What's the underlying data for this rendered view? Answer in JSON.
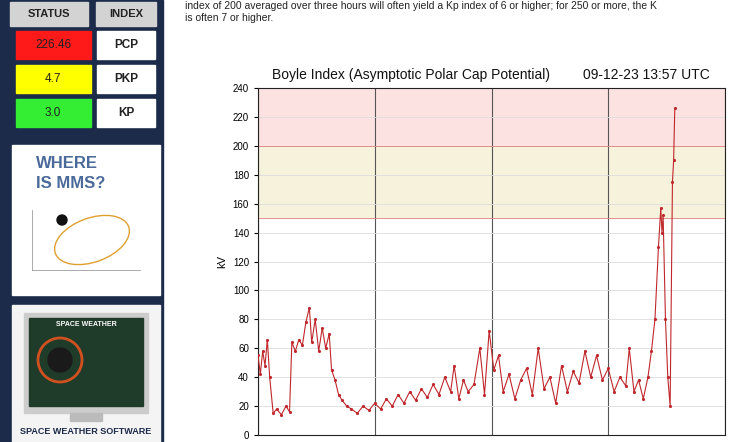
{
  "page_text": [
    "index of 200 averaged over three hours will often yield a Kp index of 6 or higher; for 250 or more, the K",
    "is often 7 or higher."
  ],
  "sidebar": {
    "header": [
      "STATUS",
      "INDEX"
    ],
    "rows": [
      {
        "value": 226.46,
        "label": "PCP",
        "color": "#ff1a1a"
      },
      {
        "value": 4.7,
        "label": "PKP",
        "color": "#ffff00"
      },
      {
        "value": 3.0,
        "label": "KP",
        "color": "#33ee33"
      }
    ],
    "mms_panel": [
      "WHERE",
      "IS MMS?"
    ],
    "software_panel": {
      "screen_text": "SPACE WEATHER",
      "caption": "SPACE WEATHER SOFTWARE"
    }
  },
  "chart_data": {
    "type": "line",
    "title": "Boyle Index (Asymptotic Polar Cap Potential)",
    "timestamp": "09-12-23 13:57 UTC",
    "y_label": "kV",
    "x": [
      0.0,
      0.02,
      0.04,
      0.06,
      0.08,
      0.1,
      0.13,
      0.16,
      0.2,
      0.24,
      0.27,
      0.29,
      0.32,
      0.35,
      0.38,
      0.41,
      0.44,
      0.46,
      0.49,
      0.52,
      0.55,
      0.58,
      0.61,
      0.63,
      0.66,
      0.69,
      0.72,
      0.76,
      0.8,
      0.85,
      0.9,
      0.95,
      1.0,
      1.05,
      1.1,
      1.15,
      1.2,
      1.25,
      1.3,
      1.35,
      1.4,
      1.45,
      1.5,
      1.55,
      1.6,
      1.65,
      1.68,
      1.72,
      1.76,
      1.8,
      1.85,
      1.9,
      1.94,
      1.98,
      2.02,
      2.06,
      2.1,
      2.15,
      2.2,
      2.25,
      2.3,
      2.35,
      2.4,
      2.45,
      2.5,
      2.55,
      2.6,
      2.65,
      2.7,
      2.75,
      2.8,
      2.85,
      2.9,
      2.95,
      3.0,
      3.05,
      3.1,
      3.15,
      3.18,
      3.22,
      3.26,
      3.3,
      3.34,
      3.37,
      3.4,
      3.43,
      3.45,
      3.46,
      3.47,
      3.49,
      3.51,
      3.53,
      3.55,
      3.56,
      3.57
    ],
    "values": [
      55,
      42,
      58,
      48,
      66,
      40,
      15,
      18,
      14,
      20,
      16,
      64,
      58,
      66,
      62,
      78,
      88,
      64,
      80,
      58,
      74,
      60,
      70,
      45,
      38,
      28,
      24,
      20,
      18,
      15,
      20,
      17,
      22,
      18,
      25,
      20,
      28,
      22,
      30,
      24,
      32,
      26,
      35,
      28,
      40,
      30,
      48,
      25,
      38,
      30,
      35,
      60,
      28,
      72,
      45,
      55,
      30,
      42,
      25,
      38,
      46,
      28,
      60,
      32,
      40,
      22,
      48,
      30,
      44,
      36,
      58,
      40,
      55,
      38,
      46,
      30,
      40,
      34,
      60,
      30,
      38,
      25,
      40,
      58,
      80,
      130,
      157,
      140,
      152,
      80,
      40,
      20,
      175,
      190,
      226
    ],
    "color": "#c0282d",
    "marker": "dot",
    "line_style": "solid",
    "xlim": [
      0,
      4
    ],
    "xticks": [
      0,
      1,
      2,
      3,
      4
    ],
    "ylim": [
      0,
      240
    ],
    "yticks": [
      0,
      20,
      40,
      60,
      80,
      100,
      120,
      140,
      160,
      180,
      200,
      220,
      240
    ],
    "zones": [
      {
        "from": 150,
        "to": 200,
        "color": "#f6f2dc"
      },
      {
        "from": 200,
        "to": 240,
        "color": "#fde2e2"
      }
    ],
    "grid": true,
    "tick_labels": "y"
  }
}
